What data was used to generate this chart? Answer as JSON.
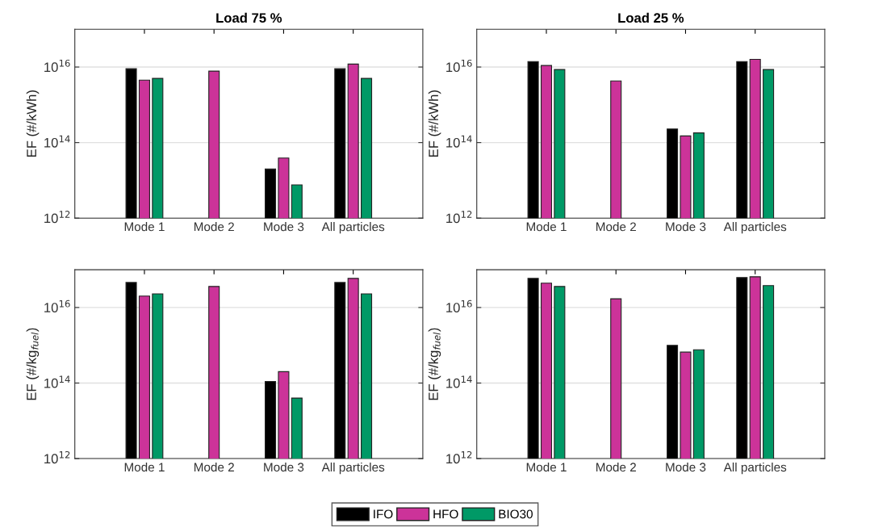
{
  "chart_data": [
    {
      "type": "bar",
      "title": "Load 75 %",
      "ylabel": "EF (#/kWh)",
      "categories": [
        "Mode 1",
        "Mode 2",
        "Mode 3",
        "All particles"
      ],
      "log": true,
      "grid": "y",
      "legend": "bottom",
      "ylim": [
        1000000000000.0,
        1e+17
      ],
      "yticks": [
        {
          "value": 1000000000000.0,
          "label": "10$^{12}$"
        },
        {
          "value": 100000000000000.0,
          "label": "10$^{14}$"
        },
        {
          "value": 1e+16,
          "label": "10$^{16}$"
        }
      ],
      "series": [
        {
          "name": "IFO",
          "color": "#000000",
          "values": [
            9000000000000000.0,
            null,
            20000000000000.0,
            9000000000000000.0
          ]
        },
        {
          "name": "HFO",
          "color": "#cc3399",
          "values": [
            4500000000000000.0,
            7800000000000000.0,
            39000000000000.0,
            1.2e+16
          ]
        },
        {
          "name": "BIO30",
          "color": "#009966",
          "values": [
            5000000000000000.0,
            null,
            7600000000000.0,
            5000000000000000.0
          ]
        }
      ]
    },
    {
      "type": "bar",
      "title": "Load 25 %",
      "ylabel": "EF (#/kWh)",
      "categories": [
        "Mode 1",
        "Mode 2",
        "Mode 3",
        "All particles"
      ],
      "log": true,
      "grid": "y",
      "ylim": [
        1000000000000.0,
        1e+17
      ],
      "yticks": [
        {
          "value": 1000000000000.0,
          "label": "10$^{12}$"
        },
        {
          "value": 100000000000000.0,
          "label": "10$^{14}$"
        },
        {
          "value": 1e+16,
          "label": "10$^{16}$"
        }
      ],
      "series": [
        {
          "color": "#000000",
          "values": [
            1.4e+16,
            null,
            230000000000000.0,
            1.4e+16
          ]
        },
        {
          "color": "#cc3399",
          "values": [
            1.1e+16,
            4300000000000000.0,
            150000000000000.0,
            1.6e+16
          ]
        },
        {
          "color": "#009966",
          "values": [
            8600000000000000.0,
            null,
            180000000000000.0,
            8600000000000000.0
          ]
        }
      ]
    },
    {
      "type": "bar",
      "ylabel": "EF (#/kg$_{fuel}$)",
      "categories": [
        "Mode 1",
        "Mode 2",
        "Mode 3",
        "All particles"
      ],
      "log": true,
      "grid": "y",
      "ylim": [
        1000000000000.0,
        1e+17
      ],
      "yticks": [
        {
          "value": 1000000000000.0,
          "label": "10$^{12}$"
        },
        {
          "value": 100000000000000.0,
          "label": "10$^{14}$"
        },
        {
          "value": 1e+16,
          "label": "10$^{16}$"
        }
      ],
      "series": [
        {
          "color": "#000000",
          "values": [
            4.6e+16,
            null,
            110000000000000.0,
            4.6e+16
          ]
        },
        {
          "color": "#cc3399",
          "values": [
            2e+16,
            3.6e+16,
            200000000000000.0,
            5.9e+16
          ]
        },
        {
          "color": "#009966",
          "values": [
            2.3e+16,
            null,
            40000000000000.0,
            2.3e+16
          ]
        }
      ]
    },
    {
      "type": "bar",
      "ylabel": "EF (#/kg$_{fuel}$)",
      "categories": [
        "Mode 1",
        "Mode 2",
        "Mode 3",
        "All particles"
      ],
      "log": true,
      "grid": "y",
      "ylim": [
        1000000000000.0,
        1e+17
      ],
      "yticks": [
        {
          "value": 1000000000000.0,
          "label": "10$^{12}$"
        },
        {
          "value": 100000000000000.0,
          "label": "10$^{14}$"
        },
        {
          "value": 1e+16,
          "label": "10$^{16}$"
        }
      ],
      "series": [
        {
          "color": "#000000",
          "values": [
            5.9e+16,
            null,
            1000000000000000.0,
            6.2e+16
          ]
        },
        {
          "color": "#cc3399",
          "values": [
            4.4e+16,
            1.7e+16,
            660000000000000.0,
            6.5e+16
          ]
        },
        {
          "color": "#009966",
          "values": [
            3.6e+16,
            null,
            760000000000000.0,
            3.8e+16
          ]
        }
      ]
    }
  ]
}
